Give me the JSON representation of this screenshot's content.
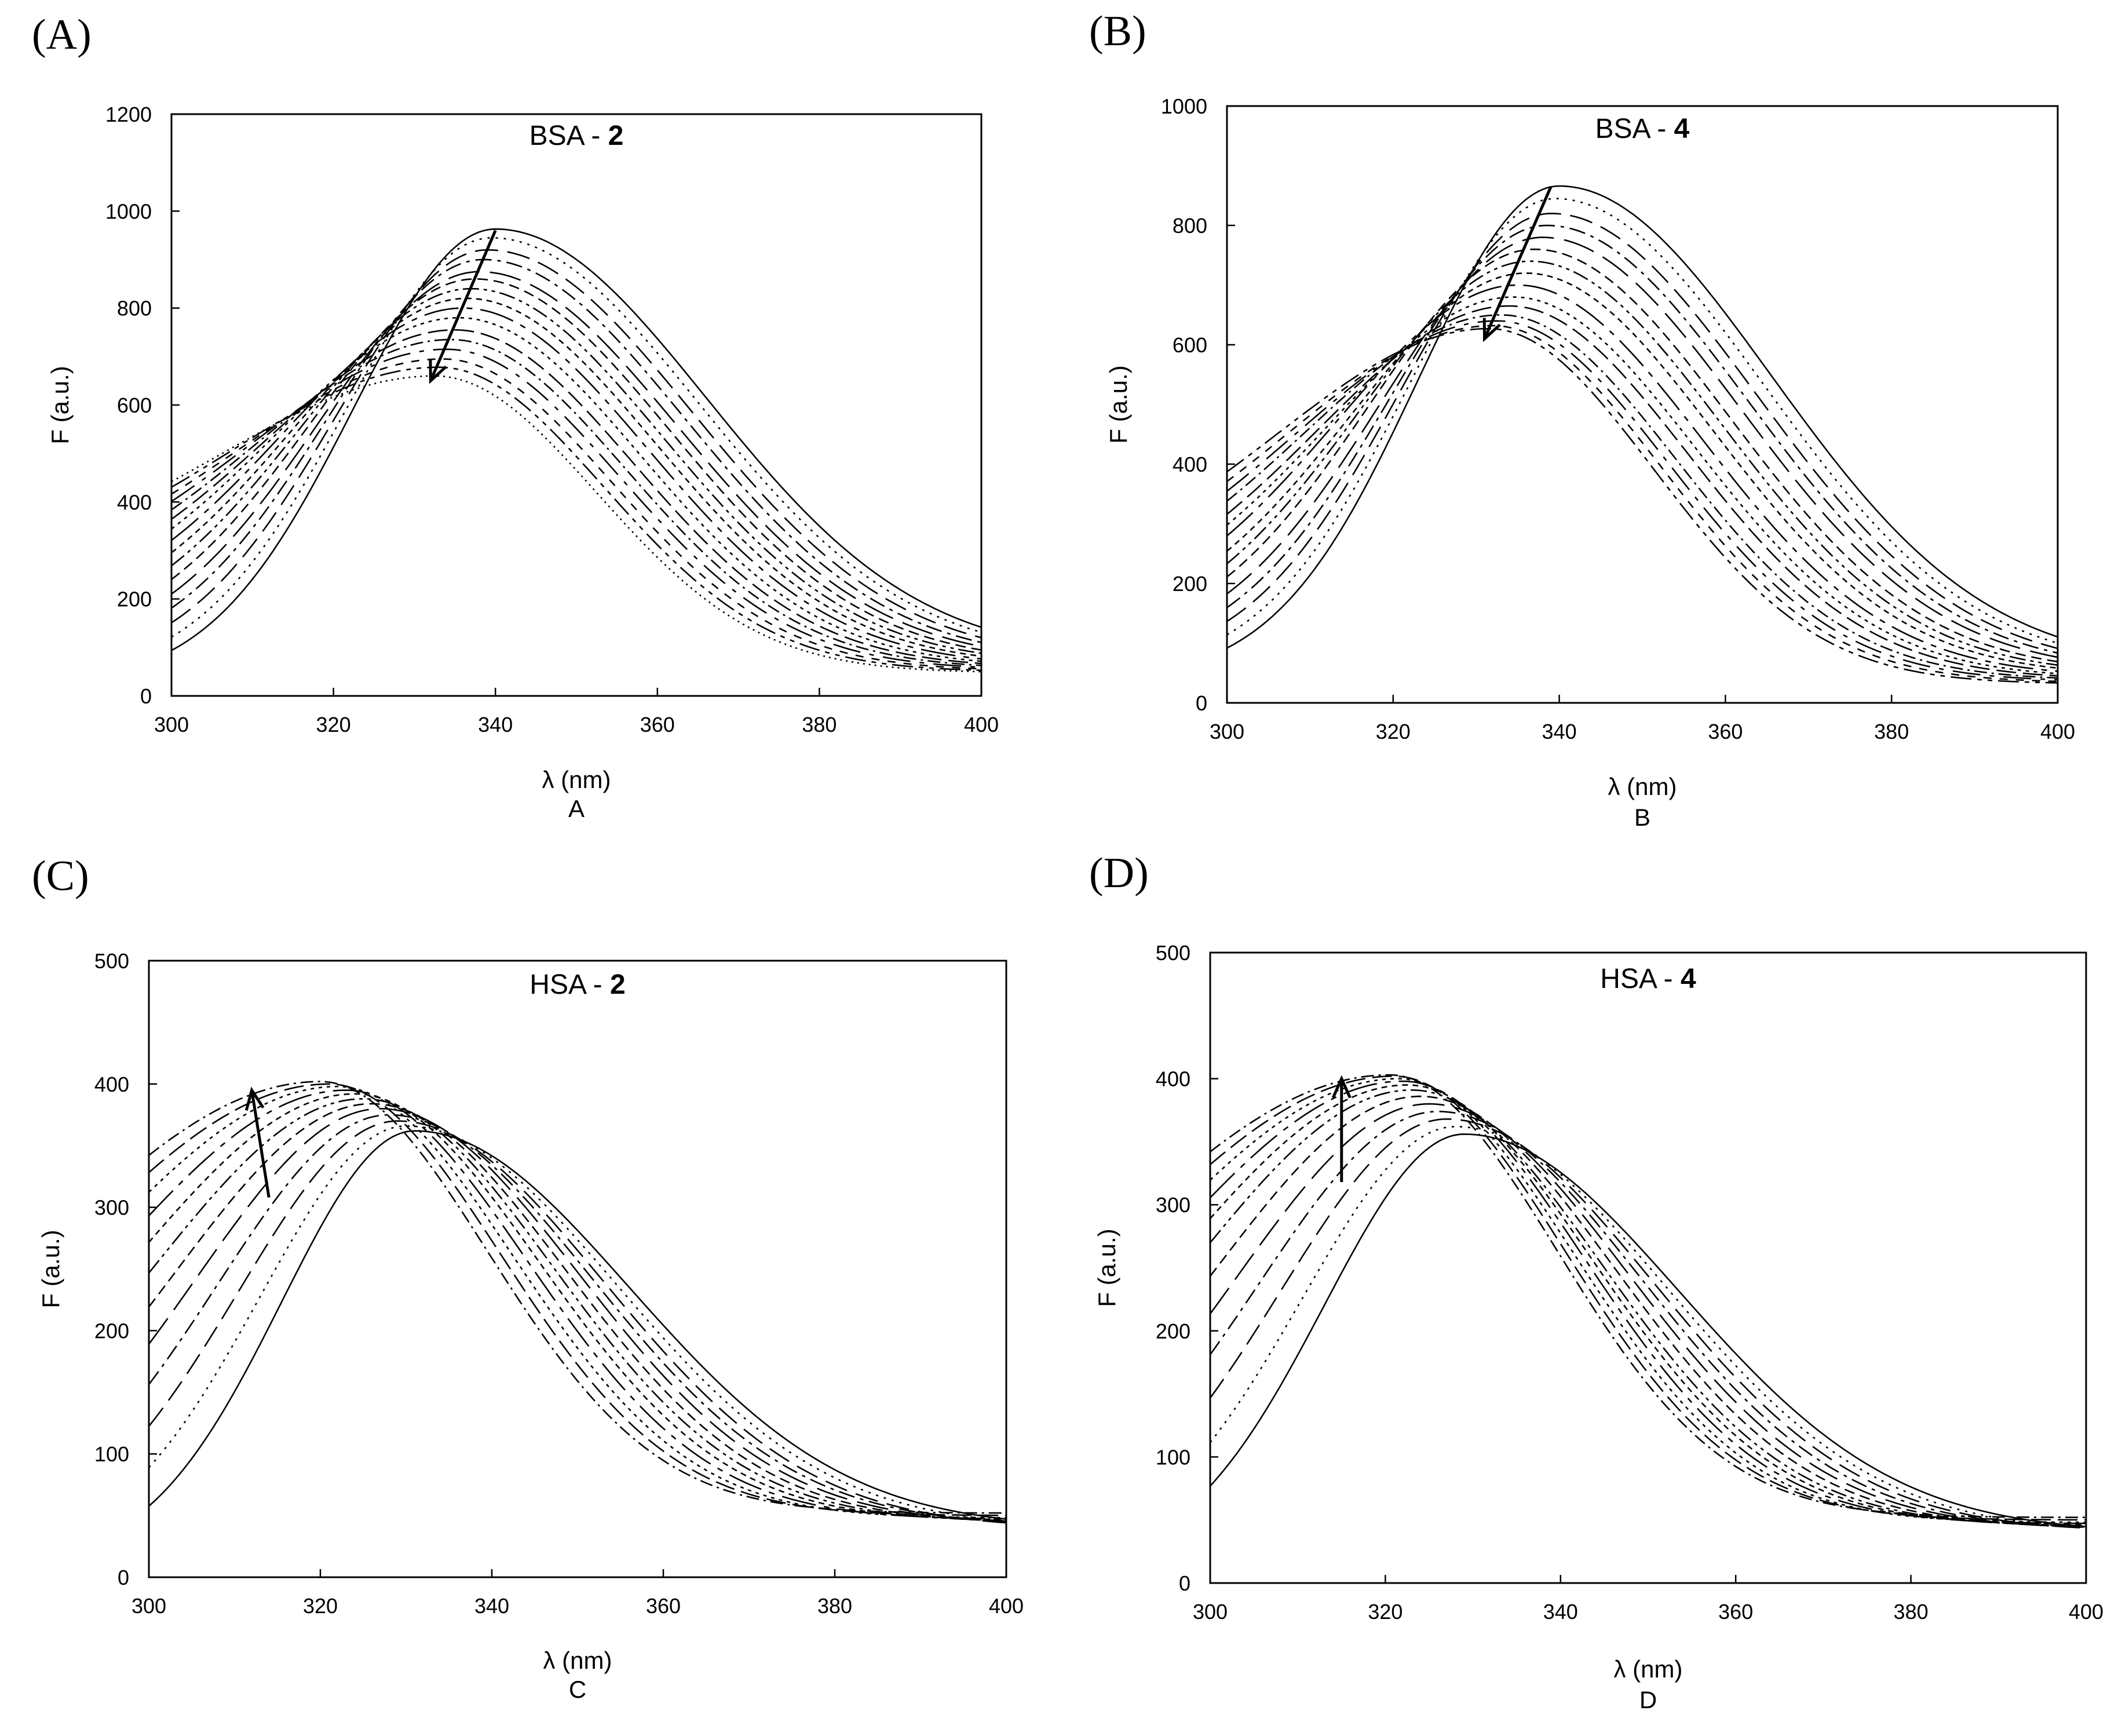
{
  "chart_data": [
    {
      "type": "line",
      "panel_label": "(A)",
      "title_prefix": "BSA - ",
      "title_bold": "2",
      "xlabel": "λ (nm)",
      "ylabel": "F (a.u.)",
      "sublabel": "A",
      "xlim": [
        300,
        400
      ],
      "ylim": [
        0,
        1200
      ],
      "xticks": [
        "300",
        "320",
        "340",
        "360",
        "380",
        "400"
      ],
      "yticks": [
        "0",
        "200",
        "400",
        "600",
        "800",
        "1000",
        "1200"
      ],
      "arrow": {
        "from": [
          340,
          960
        ],
        "to": [
          332,
          650
        ],
        "direction": "down"
      },
      "series": [
        {
          "name": "c0",
          "peak_x": 340,
          "peak_y": 963,
          "sigma_left": 17.5,
          "sigma_right": 26.0,
          "base_left": 25,
          "base_right": 80
        },
        {
          "name": "c1",
          "peak_x": 339.5,
          "peak_y": 945,
          "sigma_left": 18.0,
          "sigma_right": 25.6,
          "base_left": 40,
          "base_right": 78
        },
        {
          "name": "c2",
          "peak_x": 339,
          "peak_y": 920,
          "sigma_left": 18.6,
          "sigma_right": 25.2,
          "base_left": 55,
          "base_right": 75
        },
        {
          "name": "c3",
          "peak_x": 338.5,
          "peak_y": 900,
          "sigma_left": 19.2,
          "sigma_right": 24.8,
          "base_left": 70,
          "base_right": 72
        },
        {
          "name": "c4",
          "peak_x": 338,
          "peak_y": 875,
          "sigma_left": 19.8,
          "sigma_right": 24.4,
          "base_left": 85,
          "base_right": 70
        },
        {
          "name": "c5",
          "peak_x": 337.5,
          "peak_y": 860,
          "sigma_left": 20.4,
          "sigma_right": 24.0,
          "base_left": 100,
          "base_right": 68
        },
        {
          "name": "c6",
          "peak_x": 337,
          "peak_y": 840,
          "sigma_left": 21.0,
          "sigma_right": 23.6,
          "base_left": 115,
          "base_right": 66
        },
        {
          "name": "c7",
          "peak_x": 336.5,
          "peak_y": 820,
          "sigma_left": 21.6,
          "sigma_right": 23.2,
          "base_left": 130,
          "base_right": 64
        },
        {
          "name": "c8",
          "peak_x": 336,
          "peak_y": 800,
          "sigma_left": 22.2,
          "sigma_right": 22.8,
          "base_left": 145,
          "base_right": 62
        },
        {
          "name": "c9",
          "peak_x": 335.5,
          "peak_y": 780,
          "sigma_left": 22.8,
          "sigma_right": 22.4,
          "base_left": 160,
          "base_right": 60
        },
        {
          "name": "c10",
          "peak_x": 335,
          "peak_y": 755,
          "sigma_left": 23.4,
          "sigma_right": 22.0,
          "base_left": 175,
          "base_right": 58
        },
        {
          "name": "c11",
          "peak_x": 334.5,
          "peak_y": 735,
          "sigma_left": 24.0,
          "sigma_right": 21.6,
          "base_left": 190,
          "base_right": 56
        },
        {
          "name": "c12",
          "peak_x": 334,
          "peak_y": 715,
          "sigma_left": 24.6,
          "sigma_right": 21.2,
          "base_left": 205,
          "base_right": 54
        },
        {
          "name": "c13",
          "peak_x": 333.5,
          "peak_y": 695,
          "sigma_left": 25.2,
          "sigma_right": 20.8,
          "base_left": 220,
          "base_right": 52
        },
        {
          "name": "c14",
          "peak_x": 333,
          "peak_y": 678,
          "sigma_left": 25.8,
          "sigma_right": 20.4,
          "base_left": 235,
          "base_right": 50
        },
        {
          "name": "c15",
          "peak_x": 332.5,
          "peak_y": 660,
          "sigma_left": 26.4,
          "sigma_right": 20.0,
          "base_left": 250,
          "base_right": 48
        }
      ]
    },
    {
      "type": "line",
      "panel_label": "(B)",
      "title_prefix": "BSA - ",
      "title_bold": "4",
      "xlabel": "λ (nm)",
      "ylabel": "F (a.u.)",
      "sublabel": "B",
      "xlim": [
        300,
        400
      ],
      "ylim": [
        0,
        1000
      ],
      "xticks": [
        "300",
        "320",
        "340",
        "360",
        "380",
        "400"
      ],
      "yticks": [
        "0",
        "200",
        "400",
        "600",
        "800",
        "1000"
      ],
      "arrow": {
        "from": [
          339,
          865
        ],
        "to": [
          331,
          610
        ],
        "direction": "down"
      },
      "series": [
        {
          "name": "c0",
          "peak_x": 340,
          "peak_y": 866,
          "sigma_left": 17.0,
          "sigma_right": 25.5,
          "base_left": 40,
          "base_right": 60
        },
        {
          "name": "c1",
          "peak_x": 339.5,
          "peak_y": 845,
          "sigma_left": 17.6,
          "sigma_right": 25.0,
          "base_left": 50,
          "base_right": 58
        },
        {
          "name": "c2",
          "peak_x": 339,
          "peak_y": 820,
          "sigma_left": 18.2,
          "sigma_right": 24.6,
          "base_left": 60,
          "base_right": 56
        },
        {
          "name": "c3",
          "peak_x": 338.5,
          "peak_y": 800,
          "sigma_left": 18.8,
          "sigma_right": 24.2,
          "base_left": 70,
          "base_right": 54
        },
        {
          "name": "c4",
          "peak_x": 338,
          "peak_y": 780,
          "sigma_left": 19.4,
          "sigma_right": 23.8,
          "base_left": 80,
          "base_right": 52
        },
        {
          "name": "c5",
          "peak_x": 337,
          "peak_y": 760,
          "sigma_left": 20.0,
          "sigma_right": 23.4,
          "base_left": 90,
          "base_right": 50
        },
        {
          "name": "c6",
          "peak_x": 336.5,
          "peak_y": 740,
          "sigma_left": 20.6,
          "sigma_right": 23.0,
          "base_left": 100,
          "base_right": 48
        },
        {
          "name": "c7",
          "peak_x": 336,
          "peak_y": 720,
          "sigma_left": 21.2,
          "sigma_right": 22.6,
          "base_left": 110,
          "base_right": 46
        },
        {
          "name": "c8",
          "peak_x": 335,
          "peak_y": 700,
          "sigma_left": 21.8,
          "sigma_right": 22.2,
          "base_left": 120,
          "base_right": 44
        },
        {
          "name": "c9",
          "peak_x": 334.5,
          "peak_y": 680,
          "sigma_left": 22.4,
          "sigma_right": 21.8,
          "base_left": 130,
          "base_right": 42
        },
        {
          "name": "c10",
          "peak_x": 334,
          "peak_y": 665,
          "sigma_left": 23.0,
          "sigma_right": 21.4,
          "base_left": 140,
          "base_right": 40
        },
        {
          "name": "c11",
          "peak_x": 333,
          "peak_y": 650,
          "sigma_left": 23.6,
          "sigma_right": 21.0,
          "base_left": 150,
          "base_right": 38
        },
        {
          "name": "c12",
          "peak_x": 332.5,
          "peak_y": 640,
          "sigma_left": 24.2,
          "sigma_right": 20.6,
          "base_left": 160,
          "base_right": 36
        },
        {
          "name": "c13",
          "peak_x": 332,
          "peak_y": 632,
          "sigma_left": 24.8,
          "sigma_right": 20.2,
          "base_left": 170,
          "base_right": 34
        },
        {
          "name": "c14",
          "peak_x": 331.5,
          "peak_y": 627,
          "sigma_left": 25.4,
          "sigma_right": 19.8,
          "base_left": 180,
          "base_right": 32
        }
      ]
    },
    {
      "type": "line",
      "panel_label": "(C)",
      "title_prefix": "HSA - ",
      "title_bold": "2",
      "xlabel": "λ (nm)",
      "ylabel": "F (a.u.)",
      "sublabel": "C",
      "xlim": [
        300,
        400
      ],
      "ylim": [
        0,
        500
      ],
      "xticks": [
        "300",
        "320",
        "340",
        "360",
        "380",
        "400"
      ],
      "yticks": [
        "0",
        "100",
        "200",
        "300",
        "400",
        "500"
      ],
      "arrow": {
        "from": [
          314,
          308
        ],
        "to": [
          312,
          395
        ],
        "direction": "up"
      },
      "series": [
        {
          "name": "c0",
          "peak_x": 331,
          "peak_y": 362,
          "sigma_left": 15.5,
          "sigma_right": 25.0,
          "base_left": 10,
          "base_right": 40
        },
        {
          "name": "c1",
          "peak_x": 330,
          "peak_y": 366,
          "sigma_left": 17.0,
          "sigma_right": 24.5,
          "base_left": 15,
          "base_right": 40
        },
        {
          "name": "c2",
          "peak_x": 329,
          "peak_y": 370,
          "sigma_left": 18.5,
          "sigma_right": 24.0,
          "base_left": 20,
          "base_right": 40
        },
        {
          "name": "c3",
          "peak_x": 328,
          "peak_y": 375,
          "sigma_left": 20.0,
          "sigma_right": 23.5,
          "base_left": 25,
          "base_right": 42
        },
        {
          "name": "c4",
          "peak_x": 327,
          "peak_y": 380,
          "sigma_left": 21.5,
          "sigma_right": 23.0,
          "base_left": 30,
          "base_right": 43
        },
        {
          "name": "c5",
          "peak_x": 326,
          "peak_y": 384,
          "sigma_left": 23.0,
          "sigma_right": 22.5,
          "base_left": 35,
          "base_right": 44
        },
        {
          "name": "c6",
          "peak_x": 325,
          "peak_y": 388,
          "sigma_left": 24.5,
          "sigma_right": 22.0,
          "base_left": 40,
          "base_right": 45
        },
        {
          "name": "c7",
          "peak_x": 324,
          "peak_y": 392,
          "sigma_left": 26.0,
          "sigma_right": 21.5,
          "base_left": 45,
          "base_right": 46
        },
        {
          "name": "c8",
          "peak_x": 323,
          "peak_y": 395,
          "sigma_left": 27.5,
          "sigma_right": 21.0,
          "base_left": 50,
          "base_right": 47
        },
        {
          "name": "c9",
          "peak_x": 322,
          "peak_y": 398,
          "sigma_left": 29.0,
          "sigma_right": 20.5,
          "base_left": 55,
          "base_right": 48
        },
        {
          "name": "c10",
          "peak_x": 321,
          "peak_y": 400,
          "sigma_left": 30.5,
          "sigma_right": 20.0,
          "base_left": 60,
          "base_right": 50
        },
        {
          "name": "c11",
          "peak_x": 320,
          "peak_y": 402,
          "sigma_left": 32.0,
          "sigma_right": 19.5,
          "base_left": 65,
          "base_right": 52
        }
      ]
    },
    {
      "type": "line",
      "panel_label": "(D)",
      "title_prefix": "HSA - ",
      "title_bold": "4",
      "xlabel": "λ (nm)",
      "ylabel": "F (a.u.)",
      "sublabel": "D",
      "xlim": [
        300,
        400
      ],
      "ylim": [
        0,
        500
      ],
      "xticks": [
        "300",
        "320",
        "340",
        "360",
        "380",
        "400"
      ],
      "yticks": [
        "0",
        "100",
        "200",
        "300",
        "400",
        "500"
      ],
      "arrow": {
        "from": [
          315,
          318
        ],
        "to": [
          315,
          400
        ],
        "direction": "up"
      },
      "series": [
        {
          "name": "c0",
          "peak_x": 329,
          "peak_y": 356,
          "sigma_left": 16.0,
          "sigma_right": 24.5,
          "base_left": 10,
          "base_right": 40
        },
        {
          "name": "c1",
          "peak_x": 328,
          "peak_y": 362,
          "sigma_left": 17.5,
          "sigma_right": 24.0,
          "base_left": 15,
          "base_right": 40
        },
        {
          "name": "c2",
          "peak_x": 327,
          "peak_y": 368,
          "sigma_left": 19.0,
          "sigma_right": 23.5,
          "base_left": 20,
          "base_right": 41
        },
        {
          "name": "c3",
          "peak_x": 326,
          "peak_y": 374,
          "sigma_left": 20.5,
          "sigma_right": 23.0,
          "base_left": 25,
          "base_right": 42
        },
        {
          "name": "c4",
          "peak_x": 325,
          "peak_y": 380,
          "sigma_left": 22.0,
          "sigma_right": 22.5,
          "base_left": 30,
          "base_right": 43
        },
        {
          "name": "c5",
          "peak_x": 324,
          "peak_y": 386,
          "sigma_left": 23.5,
          "sigma_right": 22.0,
          "base_left": 35,
          "base_right": 44
        },
        {
          "name": "c6",
          "peak_x": 323,
          "peak_y": 391,
          "sigma_left": 25.0,
          "sigma_right": 21.5,
          "base_left": 40,
          "base_right": 45
        },
        {
          "name": "c7",
          "peak_x": 322.5,
          "peak_y": 395,
          "sigma_left": 26.5,
          "sigma_right": 21.0,
          "base_left": 45,
          "base_right": 46
        },
        {
          "name": "c8",
          "peak_x": 322,
          "peak_y": 398,
          "sigma_left": 28.0,
          "sigma_right": 20.5,
          "base_left": 50,
          "base_right": 47
        },
        {
          "name": "c9",
          "peak_x": 321.5,
          "peak_y": 400,
          "sigma_left": 29.5,
          "sigma_right": 20.0,
          "base_left": 55,
          "base_right": 48
        },
        {
          "name": "c10",
          "peak_x": 321,
          "peak_y": 402,
          "sigma_left": 31.0,
          "sigma_right": 19.5,
          "base_left": 60,
          "base_right": 50
        },
        {
          "name": "c11",
          "peak_x": 320.5,
          "peak_y": 403,
          "sigma_left": 32.5,
          "sigma_right": 19.0,
          "base_left": 65,
          "base_right": 52
        }
      ]
    }
  ]
}
